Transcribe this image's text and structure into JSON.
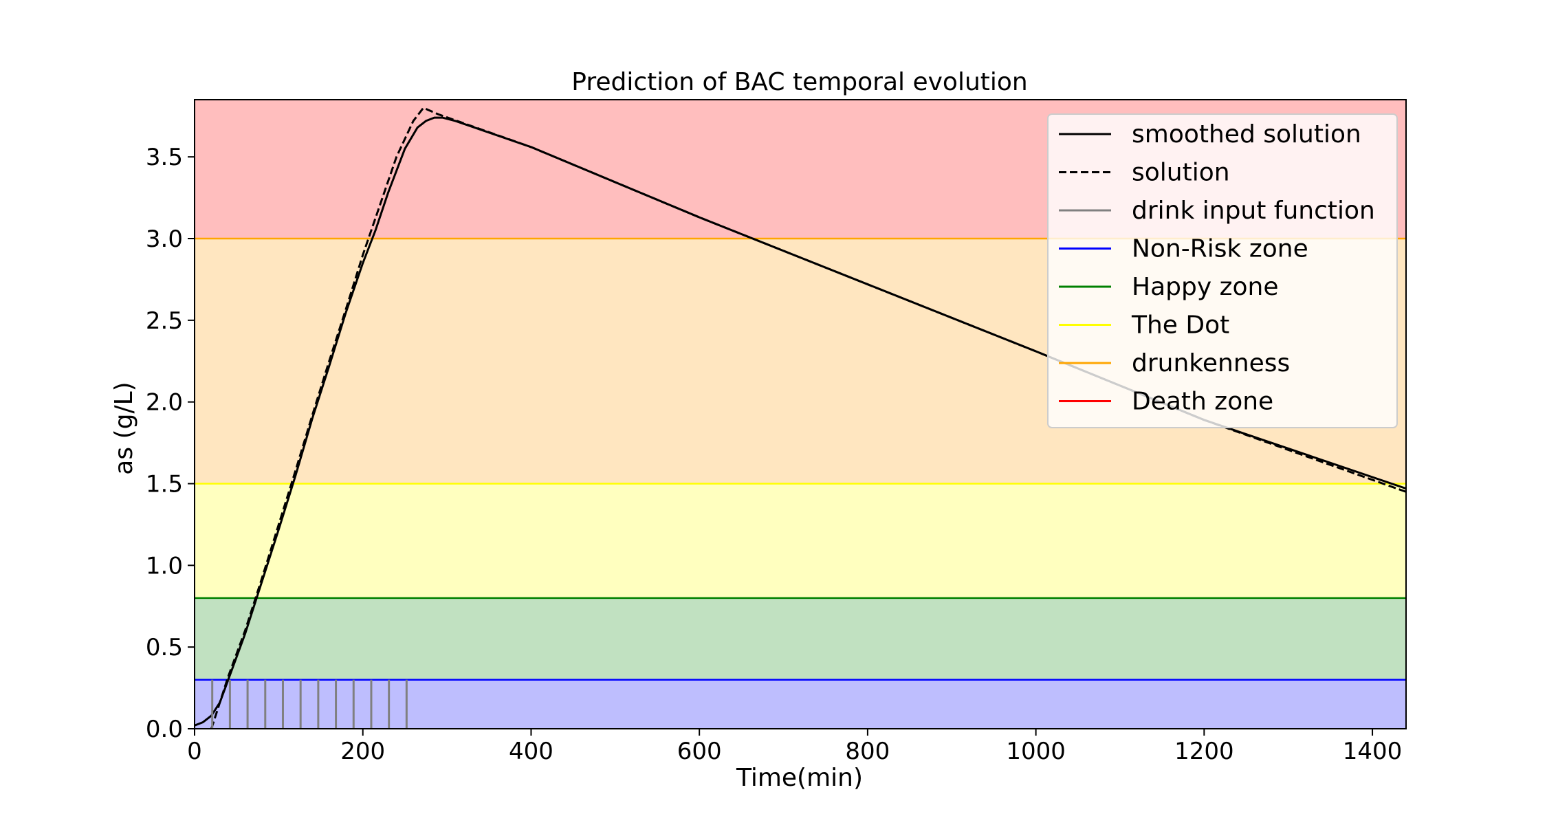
{
  "chart_data": {
    "type": "line",
    "title": "Prediction of BAC temporal evolution",
    "xlabel": "Time(min)",
    "ylabel": "as (g/L)",
    "xlim": [
      0,
      1440
    ],
    "ylim": [
      0,
      3.85
    ],
    "x_ticks": [
      0,
      200,
      400,
      600,
      800,
      1000,
      1200,
      1400
    ],
    "y_ticks": [
      0.0,
      0.5,
      1.0,
      1.5,
      2.0,
      2.5,
      3.0,
      3.5
    ],
    "x_tick_labels": [
      "0",
      "200",
      "400",
      "600",
      "800",
      "1000",
      "1200",
      "1400"
    ],
    "y_tick_labels": [
      "0.0",
      "0.5",
      "1.0",
      "1.5",
      "2.0",
      "2.5",
      "3.0",
      "3.5"
    ],
    "grid": false,
    "legend_position": "top-right",
    "zones": [
      {
        "name": "Non-Risk zone",
        "from": 0,
        "to": 0.3,
        "fill": "#bebefe",
        "line": "#0000ff"
      },
      {
        "name": "Happy zone",
        "from": 0.3,
        "to": 0.8,
        "fill": "#c1e1c1",
        "line": "#008000"
      },
      {
        "name": "The Dot",
        "from": 0.8,
        "to": 1.5,
        "fill": "#ffffbf",
        "line": "#ffff00"
      },
      {
        "name": "drunkenness",
        "from": 1.5,
        "to": 3.0,
        "fill": "#ffe6c0",
        "line": "#ffa500"
      },
      {
        "name": "Death zone",
        "from": 3.0,
        "to": 3.85,
        "fill": "#ffbebe",
        "line": "#ff0000"
      }
    ],
    "series": [
      {
        "name": "smoothed solution",
        "style": "solid",
        "color": "#000000",
        "x": [
          0,
          10,
          20,
          30,
          40,
          60,
          80,
          100,
          120,
          140,
          160,
          180,
          200,
          215,
          230,
          250,
          265,
          275,
          285,
          295,
          310,
          400,
          600,
          800,
          1000,
          1200,
          1440
        ],
        "y": [
          0.02,
          0.04,
          0.08,
          0.16,
          0.3,
          0.58,
          0.9,
          1.22,
          1.55,
          1.9,
          2.22,
          2.55,
          2.85,
          3.05,
          3.28,
          3.55,
          3.68,
          3.72,
          3.74,
          3.74,
          3.72,
          3.56,
          3.13,
          2.72,
          2.31,
          1.89,
          1.47
        ]
      },
      {
        "name": "solution",
        "style": "dashed",
        "color": "#000000",
        "x": [
          20,
          40,
          60,
          80,
          100,
          120,
          140,
          160,
          180,
          200,
          220,
          240,
          260,
          272,
          290,
          400,
          600,
          800,
          1000,
          1200,
          1440
        ],
        "y": [
          0.0,
          0.32,
          0.6,
          0.92,
          1.25,
          1.58,
          1.92,
          2.25,
          2.57,
          2.9,
          3.2,
          3.5,
          3.72,
          3.8,
          3.76,
          3.56,
          3.13,
          2.72,
          2.31,
          1.89,
          1.45
        ]
      },
      {
        "name": "drink input function",
        "style": "impulses",
        "color": "#808080",
        "x": [
          21,
          42,
          63,
          84,
          105,
          126,
          147,
          168,
          189,
          210,
          231,
          252
        ],
        "y": [
          0.3,
          0.3,
          0.3,
          0.3,
          0.3,
          0.3,
          0.3,
          0.3,
          0.3,
          0.3,
          0.3,
          0.3
        ]
      }
    ],
    "legend": [
      {
        "label": "smoothed solution",
        "color": "#000000",
        "style": "solid"
      },
      {
        "label": "solution",
        "color": "#000000",
        "style": "dashed"
      },
      {
        "label": "drink input function",
        "color": "#808080",
        "style": "solid"
      },
      {
        "label": "Non-Risk zone",
        "color": "#0000ff",
        "style": "solid"
      },
      {
        "label": "Happy zone",
        "color": "#008000",
        "style": "solid"
      },
      {
        "label": "The Dot",
        "color": "#ffff00",
        "style": "solid"
      },
      {
        "label": "drunkenness",
        "color": "#ffa500",
        "style": "solid"
      },
      {
        "label": "Death zone",
        "color": "#ff0000",
        "style": "solid"
      }
    ]
  }
}
